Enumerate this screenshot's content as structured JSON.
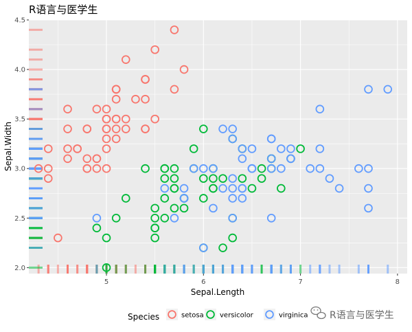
{
  "chart_data": {
    "type": "scatter",
    "title": "R语言与医学生",
    "xlabel": "Sepal.Length",
    "ylabel": "Sepal.Width",
    "xlim": [
      4.2,
      8.1
    ],
    "ylim": [
      1.94,
      4.5
    ],
    "xticks": [
      5,
      6,
      7,
      8
    ],
    "yticks": [
      2.0,
      2.5,
      3.0,
      3.5,
      4.0,
      4.5
    ],
    "grid": true,
    "rug": true,
    "legend": {
      "title": "Species",
      "placement": "bottom",
      "entries": [
        "setosa",
        "versicolor",
        "virginica"
      ]
    },
    "colors": {
      "setosa": "#F8766D",
      "versicolor": "#00BA38",
      "virginica": "#619CFF"
    },
    "series": [
      {
        "name": "setosa",
        "points": [
          [
            5.1,
            3.5
          ],
          [
            4.9,
            3.0
          ],
          [
            4.7,
            3.2
          ],
          [
            4.6,
            3.1
          ],
          [
            5.0,
            3.6
          ],
          [
            5.4,
            3.9
          ],
          [
            4.6,
            3.4
          ],
          [
            5.0,
            3.4
          ],
          [
            4.4,
            2.9
          ],
          [
            4.9,
            3.1
          ],
          [
            5.4,
            3.7
          ],
          [
            4.8,
            3.4
          ],
          [
            4.8,
            3.0
          ],
          [
            4.3,
            3.0
          ],
          [
            5.8,
            4.0
          ],
          [
            5.7,
            4.4
          ],
          [
            5.4,
            3.9
          ],
          [
            5.1,
            3.5
          ],
          [
            5.7,
            3.8
          ],
          [
            5.1,
            3.8
          ],
          [
            5.4,
            3.4
          ],
          [
            5.1,
            3.7
          ],
          [
            4.6,
            3.6
          ],
          [
            5.1,
            3.3
          ],
          [
            4.8,
            3.4
          ],
          [
            5.0,
            3.0
          ],
          [
            5.0,
            3.4
          ],
          [
            5.2,
            3.5
          ],
          [
            5.2,
            3.4
          ],
          [
            4.7,
            3.2
          ],
          [
            4.8,
            3.1
          ],
          [
            5.4,
            3.4
          ],
          [
            5.2,
            4.1
          ],
          [
            5.5,
            4.2
          ],
          [
            4.9,
            3.1
          ],
          [
            5.0,
            3.2
          ],
          [
            5.5,
            3.5
          ],
          [
            4.9,
            3.6
          ],
          [
            4.4,
            3.0
          ],
          [
            5.1,
            3.4
          ],
          [
            5.0,
            3.5
          ],
          [
            4.5,
            2.3
          ],
          [
            4.4,
            3.2
          ],
          [
            5.0,
            3.5
          ],
          [
            5.1,
            3.8
          ],
          [
            4.8,
            3.0
          ],
          [
            5.1,
            3.8
          ],
          [
            4.6,
            3.2
          ],
          [
            5.3,
            3.7
          ],
          [
            5.0,
            3.3
          ]
        ]
      },
      {
        "name": "versicolor",
        "points": [
          [
            7.0,
            3.2
          ],
          [
            6.4,
            3.2
          ],
          [
            6.9,
            3.1
          ],
          [
            5.5,
            2.3
          ],
          [
            6.5,
            2.8
          ],
          [
            5.7,
            2.8
          ],
          [
            6.3,
            3.3
          ],
          [
            4.9,
            2.4
          ],
          [
            6.6,
            2.9
          ],
          [
            5.2,
            2.7
          ],
          [
            5.0,
            2.0
          ],
          [
            5.9,
            3.0
          ],
          [
            6.0,
            2.2
          ],
          [
            6.1,
            2.9
          ],
          [
            5.6,
            2.9
          ],
          [
            6.7,
            3.1
          ],
          [
            5.6,
            3.0
          ],
          [
            5.8,
            2.7
          ],
          [
            6.2,
            2.2
          ],
          [
            5.6,
            2.5
          ],
          [
            5.9,
            3.2
          ],
          [
            6.1,
            2.8
          ],
          [
            6.3,
            2.5
          ],
          [
            6.1,
            2.8
          ],
          [
            6.4,
            2.9
          ],
          [
            6.6,
            3.0
          ],
          [
            6.8,
            2.8
          ],
          [
            6.7,
            3.0
          ],
          [
            6.0,
            2.9
          ],
          [
            5.7,
            2.6
          ],
          [
            5.5,
            2.4
          ],
          [
            5.5,
            2.4
          ],
          [
            5.8,
            2.7
          ],
          [
            6.0,
            2.7
          ],
          [
            5.4,
            3.0
          ],
          [
            6.0,
            3.4
          ],
          [
            6.7,
            3.1
          ],
          [
            6.3,
            2.3
          ],
          [
            5.6,
            3.0
          ],
          [
            5.5,
            2.5
          ],
          [
            5.5,
            2.6
          ],
          [
            6.1,
            3.0
          ],
          [
            5.8,
            2.6
          ],
          [
            5.0,
            2.3
          ],
          [
            5.6,
            2.7
          ],
          [
            5.7,
            3.0
          ],
          [
            5.7,
            2.9
          ],
          [
            6.2,
            2.9
          ],
          [
            5.1,
            2.5
          ],
          [
            5.7,
            2.8
          ]
        ]
      },
      {
        "name": "virginica",
        "points": [
          [
            6.3,
            3.3
          ],
          [
            5.8,
            2.7
          ],
          [
            7.1,
            3.0
          ],
          [
            6.3,
            2.9
          ],
          [
            6.5,
            3.0
          ],
          [
            7.6,
            3.0
          ],
          [
            4.9,
            2.5
          ],
          [
            7.3,
            2.9
          ],
          [
            6.7,
            2.5
          ],
          [
            7.2,
            3.6
          ],
          [
            6.5,
            3.2
          ],
          [
            6.4,
            2.7
          ],
          [
            6.8,
            3.0
          ],
          [
            5.7,
            2.5
          ],
          [
            5.8,
            2.8
          ],
          [
            6.4,
            3.2
          ],
          [
            6.5,
            3.0
          ],
          [
            7.7,
            3.8
          ],
          [
            7.7,
            2.6
          ],
          [
            6.0,
            2.2
          ],
          [
            6.9,
            3.2
          ],
          [
            5.6,
            2.8
          ],
          [
            7.7,
            2.8
          ],
          [
            6.3,
            2.7
          ],
          [
            6.7,
            3.3
          ],
          [
            7.2,
            3.2
          ],
          [
            6.2,
            2.8
          ],
          [
            6.1,
            3.0
          ],
          [
            6.4,
            2.8
          ],
          [
            7.2,
            3.0
          ],
          [
            7.4,
            2.8
          ],
          [
            7.9,
            3.8
          ],
          [
            6.4,
            2.8
          ],
          [
            6.3,
            2.8
          ],
          [
            6.1,
            2.6
          ],
          [
            7.7,
            3.0
          ],
          [
            6.3,
            3.4
          ],
          [
            6.4,
            3.1
          ],
          [
            6.0,
            3.0
          ],
          [
            6.9,
            3.1
          ],
          [
            6.7,
            3.1
          ],
          [
            6.9,
            3.1
          ],
          [
            5.8,
            2.7
          ],
          [
            6.8,
            3.2
          ],
          [
            6.7,
            3.3
          ],
          [
            6.7,
            3.0
          ],
          [
            6.3,
            2.5
          ],
          [
            6.5,
            3.0
          ],
          [
            6.2,
            3.4
          ],
          [
            5.9,
            3.0
          ]
        ]
      }
    ]
  },
  "watermark": {
    "icon": "wechat-icon",
    "text": "R语言与医学生"
  }
}
